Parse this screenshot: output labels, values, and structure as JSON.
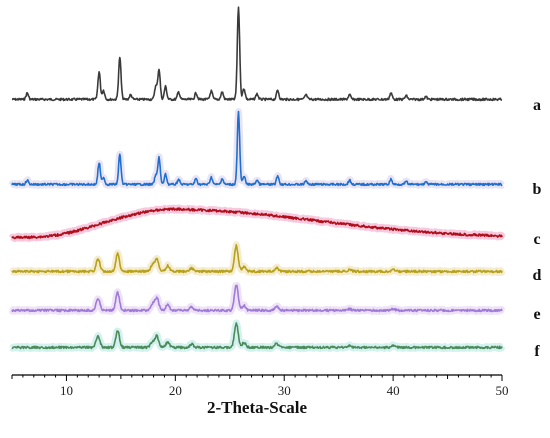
{
  "chart_data": {
    "type": "line",
    "title": "",
    "xlabel": "2-Theta-Scale",
    "ylabel": "",
    "xlim": [
      5,
      50
    ],
    "x_ticks": [
      10,
      20,
      30,
      40,
      50
    ],
    "grid": false,
    "legend": "none",
    "series": [
      {
        "name": "a",
        "color": "#3a3a3a",
        "baseline": 0.05,
        "peaks": [
          [
            6.4,
            0.07
          ],
          [
            13.0,
            0.3
          ],
          [
            13.4,
            0.1
          ],
          [
            14.9,
            0.46
          ],
          [
            15.9,
            0.05
          ],
          [
            18.2,
            0.14
          ],
          [
            18.5,
            0.33
          ],
          [
            19.1,
            0.14
          ],
          [
            20.3,
            0.08
          ],
          [
            21.9,
            0.07
          ],
          [
            23.3,
            0.09
          ],
          [
            24.3,
            0.08
          ],
          [
            25.8,
            1.0
          ],
          [
            26.3,
            0.12
          ],
          [
            27.5,
            0.06
          ],
          [
            29.4,
            0.1
          ],
          [
            32.0,
            0.05
          ],
          [
            36.0,
            0.05
          ],
          [
            39.8,
            0.07
          ],
          [
            41.2,
            0.04
          ],
          [
            43.0,
            0.03
          ]
        ]
      },
      {
        "name": "b",
        "color": "#1f6fd1",
        "baseline": 0.05,
        "peaks": [
          [
            6.4,
            0.06
          ],
          [
            13.0,
            0.3
          ],
          [
            13.4,
            0.1
          ],
          [
            14.9,
            0.42
          ],
          [
            18.2,
            0.12
          ],
          [
            18.5,
            0.38
          ],
          [
            19.1,
            0.14
          ],
          [
            20.3,
            0.07
          ],
          [
            21.9,
            0.08
          ],
          [
            23.3,
            0.1
          ],
          [
            24.3,
            0.08
          ],
          [
            25.8,
            1.0
          ],
          [
            26.3,
            0.12
          ],
          [
            27.5,
            0.06
          ],
          [
            29.4,
            0.12
          ],
          [
            32.0,
            0.05
          ],
          [
            36.0,
            0.06
          ],
          [
            39.8,
            0.07
          ],
          [
            41.2,
            0.04
          ],
          [
            43.0,
            0.03
          ]
        ]
      },
      {
        "name": "c",
        "color": "#b00e1a",
        "amorphous": true,
        "halo_center": 20,
        "halo_height": 1.0,
        "end_level": 0.05
      },
      {
        "name": "d",
        "color": "#b5a11a",
        "baseline": 0.08,
        "peaks": [
          [
            12.9,
            0.38
          ],
          [
            14.7,
            0.55
          ],
          [
            17.9,
            0.2
          ],
          [
            18.3,
            0.4
          ],
          [
            19.3,
            0.18
          ],
          [
            21.5,
            0.1
          ],
          [
            25.6,
            0.8
          ],
          [
            26.3,
            0.15
          ],
          [
            29.3,
            0.12
          ],
          [
            36.0,
            0.05
          ],
          [
            40.0,
            0.05
          ]
        ]
      },
      {
        "name": "e",
        "color": "#a07ad8",
        "baseline": 0.08,
        "peaks": [
          [
            12.9,
            0.38
          ],
          [
            14.7,
            0.55
          ],
          [
            17.9,
            0.2
          ],
          [
            18.3,
            0.4
          ],
          [
            19.3,
            0.18
          ],
          [
            21.5,
            0.1
          ],
          [
            25.6,
            0.8
          ],
          [
            26.3,
            0.15
          ],
          [
            29.3,
            0.12
          ],
          [
            36.0,
            0.05
          ],
          [
            40.0,
            0.05
          ]
        ]
      },
      {
        "name": "f",
        "color": "#4d8a5a",
        "baseline": 0.08,
        "peaks": [
          [
            12.9,
            0.35
          ],
          [
            14.7,
            0.52
          ],
          [
            17.9,
            0.18
          ],
          [
            18.3,
            0.35
          ],
          [
            19.3,
            0.16
          ],
          [
            21.5,
            0.1
          ],
          [
            25.6,
            0.75
          ],
          [
            26.3,
            0.15
          ],
          [
            29.3,
            0.12
          ],
          [
            36.0,
            0.06
          ],
          [
            40.0,
            0.06
          ]
        ]
      }
    ]
  }
}
